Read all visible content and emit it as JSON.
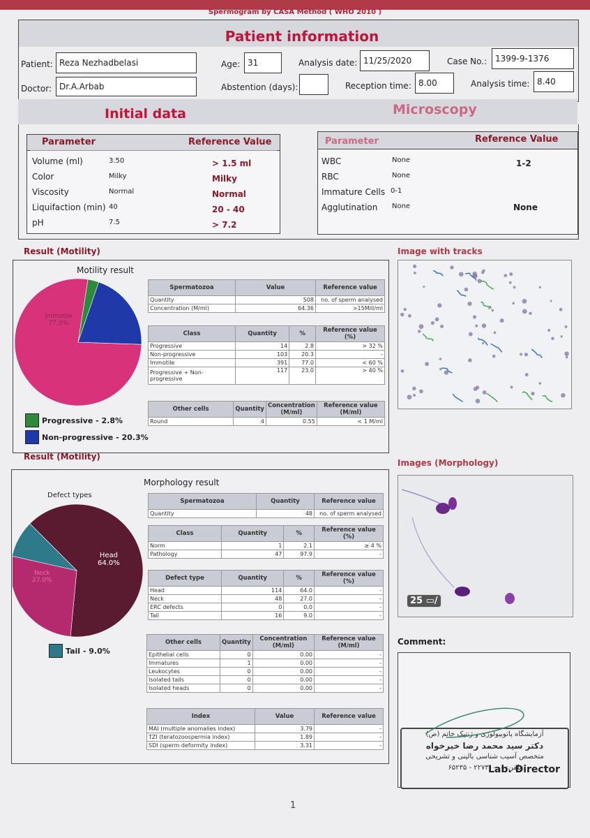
{
  "report": {
    "title": "Spermogram by CASA Method ( WHO 2010 )",
    "page_number": "1"
  },
  "patient": {
    "section_title": "Patient information",
    "patient_label": "Patient:",
    "patient_value": "Reza  Nezhadbelasi",
    "age_label": "Age:",
    "age_value": "31",
    "analysis_date_label": "Analysis date:",
    "analysis_date_value": "11/25/2020",
    "case_label": "Case No.:",
    "case_value": "1399-9-1376",
    "doctor_label": "Doctor:",
    "doctor_value": "Dr.A.Arbab",
    "abstention_label": "Abstention (days):",
    "abstention_value": "",
    "reception_label": "Reception time:",
    "reception_value": "8.00",
    "analysis_time_label": "Analysis time:",
    "analysis_time_value": "8.40"
  },
  "initial": {
    "title": "Initial data",
    "param_header": "Parameter",
    "ref_header": "Reference Value",
    "rows": [
      {
        "name": "Volume (ml)",
        "value": "3.50",
        "ref": "> 1.5 ml"
      },
      {
        "name": "Color",
        "value": "Milky",
        "ref": "Milky"
      },
      {
        "name": "Viscosity",
        "value": "Normal",
        "ref": "Normal"
      },
      {
        "name": "Liquifaction (min)",
        "value": "40",
        "ref": "20 - 40"
      },
      {
        "name": "pH",
        "value": "7.5",
        "ref": "> 7.2"
      }
    ]
  },
  "microscopy": {
    "title": "Microscopy",
    "param_header": "Parameter",
    "ref_header": "Reference Value",
    "rows": [
      {
        "name": "WBC",
        "value": "None",
        "ref": "1-2"
      },
      {
        "name": "RBC",
        "value": "None",
        "ref": ""
      },
      {
        "name": "Immature Cells",
        "value": "0-1",
        "ref": ""
      },
      {
        "name": "Agglutination",
        "value": "None",
        "ref": "None"
      }
    ]
  },
  "motility": {
    "section_title": "Result (Motility)",
    "chart_title": "Motility result",
    "images_title": "Image with tracks",
    "legend": [
      {
        "label": "Progressive - 2.8%",
        "color": "#2e8a3a"
      },
      {
        "label": "Non-progressive - 20.3%",
        "color": "#1f3aa8"
      }
    ],
    "pie_label_immotile": "Immotile",
    "pie_label_immotile_pct": "77.0%",
    "sperm_table": {
      "headers": [
        "Spermatozoa",
        "Value",
        "Reference value"
      ],
      "rows": [
        {
          "name": "Quantity",
          "value": "508",
          "ref": "no. of sperm analysed"
        },
        {
          "name": "Concentration (M/ml)",
          "value": "64.36",
          "ref": ">15Mill/ml"
        }
      ]
    },
    "class_table": {
      "headers": [
        "Class",
        "Quantity",
        "%",
        "Reference value (%)"
      ],
      "rows": [
        {
          "name": "Progressive",
          "qty": "14",
          "pct": "2.8",
          "ref": "> 32 %"
        },
        {
          "name": "Non-progressive",
          "qty": "103",
          "pct": "20.3",
          "ref": "-"
        },
        {
          "name": "Immotile",
          "qty": "391",
          "pct": "77.0",
          "ref": "< 60 %"
        },
        {
          "name": "Progressive + Non-progressive",
          "qty": "117",
          "pct": "23.0",
          "ref": "> 40 %"
        }
      ]
    },
    "other_table": {
      "headers": [
        "Other cells",
        "Quantity",
        "Concentration (M/ml)",
        "Reference value (M/ml)"
      ],
      "rows": [
        {
          "name": "Round",
          "qty": "4",
          "conc": "0.55",
          "ref": "< 1 M/ml"
        }
      ]
    }
  },
  "morphology": {
    "section_title": "Result (Motility)",
    "chart_title": "Morphology result",
    "defect_title": "Defect types",
    "images_title": "Images (Morphology)",
    "pie_label_head": "Head",
    "pie_label_head_pct": "64.0%",
    "pie_label_neck": "Neck",
    "pie_label_neck_pct": "27.0%",
    "legend": [
      {
        "label": "Tail - 9.0%",
        "color": "#2e7a8a"
      }
    ],
    "counter": "25",
    "sperm_table": {
      "headers": [
        "Spermatozoa",
        "Quantity",
        "Reference value"
      ],
      "rows": [
        {
          "name": "Quantity",
          "value": "48",
          "ref": "no. of sperm analysed"
        }
      ]
    },
    "class_table": {
      "headers": [
        "Class",
        "Quantity",
        "%",
        "Reference value (%)"
      ],
      "rows": [
        {
          "name": "Norm",
          "qty": "1",
          "pct": "2.1",
          "ref": "≥ 4 %"
        },
        {
          "name": "Pathology",
          "qty": "47",
          "pct": "97.9",
          "ref": "-"
        }
      ]
    },
    "defect_table": {
      "headers": [
        "Defect type",
        "Quantity",
        "%",
        "Reference value (%)"
      ],
      "rows": [
        {
          "name": "Head",
          "qty": "114",
          "pct": "64.0",
          "ref": "-"
        },
        {
          "name": "Neck",
          "qty": "48",
          "pct": "27.0",
          "ref": "-"
        },
        {
          "name": "ERC defects",
          "qty": "0",
          "pct": "0.0",
          "ref": "-"
        },
        {
          "name": "Tail",
          "qty": "16",
          "pct": "9.0",
          "ref": "-"
        }
      ]
    },
    "other_table": {
      "headers": [
        "Other cells",
        "Quantity",
        "Concentration (M/ml)",
        "Reference value (M/ml)"
      ],
      "rows": [
        {
          "name": "Epithelial cells",
          "qty": "0",
          "conc": "0.00",
          "ref": "-"
        },
        {
          "name": "Immatures",
          "qty": "1",
          "conc": "0.00",
          "ref": "-"
        },
        {
          "name": "Leukocytes",
          "qty": "0",
          "conc": "0.00",
          "ref": "-"
        },
        {
          "name": "Isolated tails",
          "qty": "0",
          "conc": "0.00",
          "ref": "-"
        },
        {
          "name": "Isolated heads",
          "qty": "0",
          "conc": "0.00",
          "ref": "-"
        }
      ]
    },
    "index_table": {
      "headers": [
        "Index",
        "Value",
        "Reference value"
      ],
      "rows": [
        {
          "name": "MAI (multiple anomalies index)",
          "value": "3.79",
          "ref": "-"
        },
        {
          "name": "TZI (teratozoospermia index)",
          "value": "1.89",
          "ref": "-"
        },
        {
          "name": "SDI (sperm deformity index)",
          "value": "3.31",
          "ref": "-"
        }
      ]
    }
  },
  "comment": {
    "title": "Comment:",
    "stamp_line1": "آزمایشگاه پاتوبیولوژی و ژنتیک خاتم (ص)",
    "stamp_line2": "دکتر سید محمد رضا خیرخواه",
    "stamp_line3": "متخصص آسیب شناسی بالینی و تشریحی",
    "stamp_line4": "تلفن: ۲۲۷۳۰۰۰۰ - ۶۵۲۳۵",
    "director_label": "Lab. Director"
  },
  "chart_data": [
    {
      "type": "pie",
      "title": "Motility result",
      "categories": [
        "Immotile",
        "Progressive",
        "Non-progressive"
      ],
      "values": [
        77.0,
        2.8,
        20.3
      ],
      "colors": [
        "#d8337a",
        "#2e8a3a",
        "#1f3aa8"
      ]
    },
    {
      "type": "pie",
      "title": "Morphology result",
      "categories": [
        "Head",
        "Neck",
        "Tail"
      ],
      "values": [
        64.0,
        27.0,
        9.0
      ],
      "colors": [
        "#5a1a30",
        "#b52a6e",
        "#2e7a8a"
      ]
    }
  ]
}
